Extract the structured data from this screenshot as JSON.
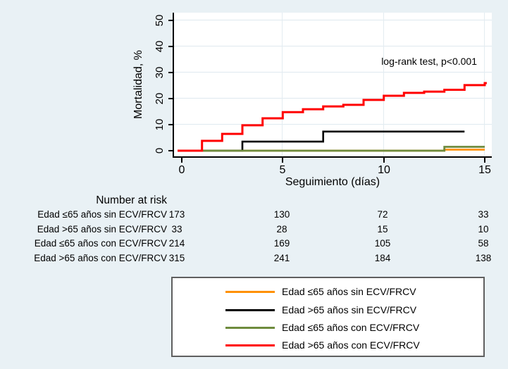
{
  "colors": {
    "background": "#e9f1f5",
    "plot_background": "#ffffff",
    "gridline": "#dfe9ef",
    "axis": "#000000",
    "legend_border": "#5f5f5f"
  },
  "chart_data": {
    "type": "line",
    "subtype": "kaplan-meier-step",
    "title": "",
    "annotation": "log-rank test, p<0.001",
    "xlabel": "Seguimiento (días)",
    "ylabel": "Mortalidad, %",
    "xlim": [
      0,
      15
    ],
    "ylim": [
      0,
      50
    ],
    "x_ticks": [
      0,
      5,
      10,
      15
    ],
    "y_ticks": [
      0,
      10,
      20,
      30,
      40,
      50
    ],
    "grid": true,
    "legend_position": "bottom-boxed",
    "series": [
      {
        "name": "Edad ≤65 años sin ECV/FRCV",
        "color": "#ff9100",
        "width": 2.8,
        "end_day": 15,
        "steps": [
          [
            0,
            0
          ],
          [
            13,
            0.4
          ]
        ]
      },
      {
        "name": "Edad >65 años sin ECV/FRCV",
        "color": "#000000",
        "width": 2.6,
        "end_day": 14,
        "steps": [
          [
            0,
            0
          ],
          [
            3,
            3.5
          ],
          [
            7,
            7.4
          ]
        ]
      },
      {
        "name": "Edad ≤65 años con ECV/FRCV",
        "color": "#6e8b3d",
        "width": 2.8,
        "end_day": 15,
        "steps": [
          [
            0,
            0
          ],
          [
            13,
            1.5
          ]
        ]
      },
      {
        "name": "Edad >65 años con ECV/FRCV",
        "color": "#ff0000",
        "width": 3,
        "end_day": 15.1,
        "steps": [
          [
            0,
            0
          ],
          [
            1,
            3.8
          ],
          [
            2,
            6.5
          ],
          [
            3,
            9.8
          ],
          [
            4,
            12.5
          ],
          [
            5,
            14.9
          ],
          [
            6,
            16.0
          ],
          [
            7,
            17.1
          ],
          [
            8,
            17.7
          ],
          [
            9,
            19.6
          ],
          [
            10,
            21.2
          ],
          [
            11,
            22.3
          ],
          [
            12,
            22.8
          ],
          [
            13,
            23.5
          ],
          [
            14,
            25.3
          ],
          [
            15,
            26.1
          ]
        ]
      }
    ],
    "risk_table": {
      "heading": "Number at risk",
      "time_points": [
        0,
        5,
        10,
        15
      ],
      "rows": [
        {
          "label": "Edad ≤65 años sin ECV/FRCV",
          "values": [
            173,
            130,
            72,
            33
          ]
        },
        {
          "label": "Edad >65 años sin ECV/FRCV",
          "values": [
            33,
            28,
            15,
            10
          ]
        },
        {
          "label": "Edad ≤65 años con ECV/FRCV",
          "values": [
            214,
            169,
            105,
            58
          ]
        },
        {
          "label": "Edad >65 años con ECV/FRCV",
          "values": [
            315,
            241,
            184,
            138
          ]
        }
      ]
    }
  }
}
